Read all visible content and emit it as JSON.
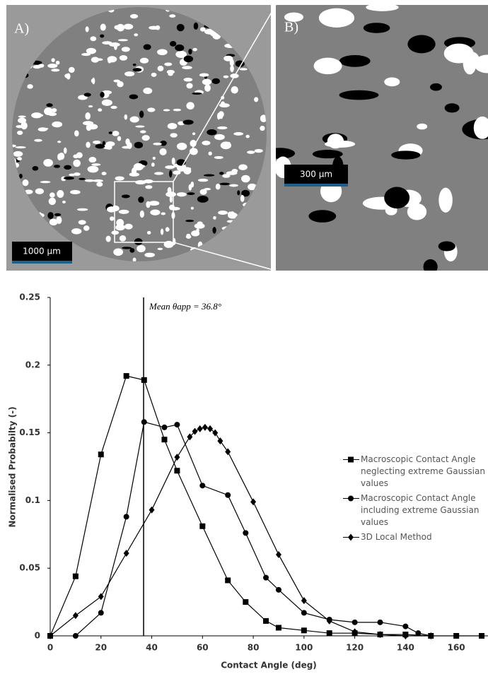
{
  "images": {
    "panel_a": {
      "label": "A)",
      "scale_bar": "1000 µm"
    },
    "panel_b": {
      "label": "B)",
      "scale_bar": "300 µm"
    }
  },
  "chart_data": {
    "type": "line",
    "x_label": "Contact Angle (deg)",
    "y_label": "Normalised Probabilty (-)",
    "xlim": [
      0,
      172.5
    ],
    "xticks": [
      0,
      20,
      40,
      60,
      80,
      100,
      120,
      140,
      160
    ],
    "ylim": [
      0,
      0.25
    ],
    "yticks": [
      0,
      0.05,
      0.1,
      0.15,
      0.2,
      0.25
    ],
    "grid": false,
    "legend": "right",
    "mean_line": {
      "value": 36.8,
      "label": "Mean θapp = 36.8°"
    },
    "series": [
      {
        "name": "Macroscopic Contact Angle neglecting extreme Gaussian values",
        "color": "#000000",
        "marker": "square",
        "x": [
          0,
          10,
          20,
          30,
          37,
          45,
          50,
          60,
          70,
          77,
          85,
          90,
          100,
          110,
          120,
          130,
          140,
          150,
          160,
          170
        ],
        "values": [
          0,
          0.044,
          0.134,
          0.192,
          0.189,
          0.145,
          0.122,
          0.081,
          0.041,
          0.025,
          0.011,
          0.006,
          0.004,
          0.002,
          0.002,
          0.001,
          0.001,
          0,
          0,
          0
        ]
      },
      {
        "name": "Macroscopic Contact Angle including extreme Gaussian values",
        "color": "#000000",
        "marker": "circle",
        "x": [
          10,
          20,
          30,
          37,
          45,
          50,
          60,
          70,
          77,
          85,
          90,
          100,
          110,
          120,
          130,
          140,
          145,
          150
        ],
        "values": [
          0,
          0.017,
          0.088,
          0.158,
          0.154,
          0.156,
          0.111,
          0.104,
          0.076,
          0.043,
          0.034,
          0.017,
          0.012,
          0.01,
          0.01,
          0.007,
          0.002,
          0
        ]
      },
      {
        "name": "3D Local Method",
        "color": "#000000",
        "marker": "diamond",
        "x": [
          0,
          10,
          20,
          30,
          40,
          50,
          55,
          57,
          59,
          61,
          63,
          65,
          67,
          70,
          80,
          90,
          100,
          110,
          120,
          130,
          140,
          150
        ],
        "values": [
          0,
          0.015,
          0.029,
          0.061,
          0.093,
          0.132,
          0.147,
          0.151,
          0.153,
          0.154,
          0.153,
          0.15,
          0.144,
          0.136,
          0.099,
          0.06,
          0.026,
          0.011,
          0.003,
          0.001,
          0,
          0
        ]
      }
    ]
  }
}
